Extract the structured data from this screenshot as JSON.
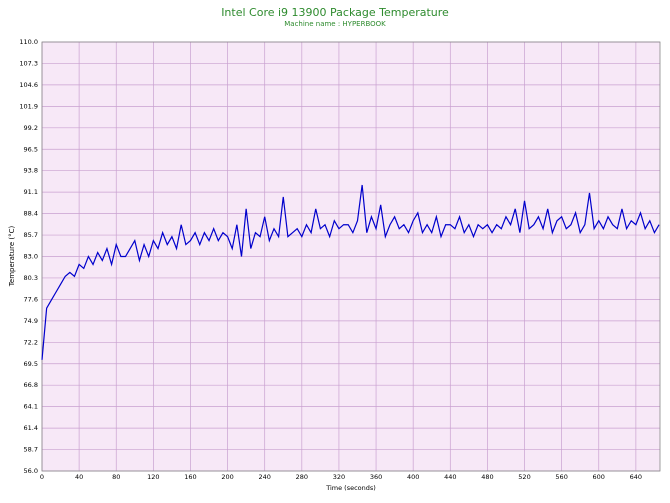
{
  "chart_data": {
    "type": "line",
    "title": "Intel Core i9 13900 Package Temperature",
    "subtitle": "Machine name : HYPERBOOK",
    "x_label": "Time (seconds)",
    "y_label": "Temperature (°C)",
    "color": "#0000cc",
    "grid": true,
    "xlim": [
      0,
      666
    ],
    "ylim": [
      56,
      110
    ],
    "xticks": [
      0,
      40,
      80,
      120,
      160,
      200,
      240,
      280,
      320,
      360,
      400,
      440,
      480,
      520,
      560,
      600,
      640
    ],
    "yticks": [
      {
        "value": 56,
        "label": "56.0"
      },
      58.7,
      61.4,
      64.1,
      66.8,
      69.5,
      72.2,
      74.9,
      77.6,
      80.3,
      {
        "value": 83,
        "label": "83.0"
      },
      85.7,
      88.4,
      91.1,
      93.8,
      96.5,
      99.2,
      101.9,
      104.6,
      107.3,
      {
        "value": 110,
        "label": "110.0"
      }
    ],
    "x": [
      0,
      5,
      10,
      15,
      20,
      25,
      30,
      35,
      40,
      45,
      50,
      55,
      60,
      65,
      70,
      75,
      80,
      85,
      90,
      95,
      100,
      105,
      110,
      115,
      120,
      125,
      130,
      135,
      140,
      145,
      150,
      155,
      160,
      165,
      170,
      175,
      180,
      185,
      190,
      195,
      200,
      205,
      210,
      215,
      220,
      225,
      230,
      235,
      240,
      245,
      250,
      255,
      260,
      265,
      270,
      275,
      280,
      285,
      290,
      295,
      300,
      305,
      310,
      315,
      320,
      325,
      330,
      335,
      340,
      345,
      350,
      355,
      360,
      365,
      370,
      375,
      380,
      385,
      390,
      395,
      400,
      405,
      410,
      415,
      420,
      425,
      430,
      435,
      440,
      445,
      450,
      455,
      460,
      465,
      470,
      475,
      480,
      485,
      490,
      495,
      500,
      505,
      510,
      515,
      520,
      525,
      530,
      535,
      540,
      545,
      550,
      555,
      560,
      565,
      570,
      575,
      580,
      585,
      590,
      595,
      600,
      605,
      610,
      615,
      620,
      625,
      630,
      635,
      640,
      645,
      650,
      655,
      660,
      665
    ],
    "values": [
      70,
      76.5,
      77.5,
      78.5,
      79.5,
      80.5,
      81,
      80.5,
      82,
      81.5,
      83,
      82,
      83.5,
      82.5,
      84,
      82,
      84.5,
      83,
      83,
      84,
      85,
      82.5,
      84.5,
      83,
      85,
      84,
      86,
      84.5,
      85.5,
      84,
      87,
      84.5,
      85,
      86,
      84.5,
      86,
      85,
      86.5,
      85,
      86,
      85.5,
      84,
      87,
      83,
      89,
      84,
      86,
      85.5,
      88,
      85,
      86.5,
      85.5,
      90.5,
      85.5,
      86,
      86.5,
      85.5,
      87,
      86,
      89,
      86.5,
      87,
      85.5,
      87.5,
      86.5,
      87,
      87,
      86,
      87.5,
      92,
      86,
      88,
      86.5,
      89.5,
      85.5,
      87,
      88,
      86.5,
      87,
      86,
      87.5,
      88.5,
      86,
      87,
      86,
      88,
      85.5,
      87,
      87,
      86.5,
      88,
      86,
      87,
      85.5,
      87,
      86.5,
      87,
      86,
      87,
      86.5,
      88,
      87,
      89,
      86,
      90,
      86.5,
      87,
      88,
      86.5,
      89,
      86,
      87.5,
      88,
      86.5,
      87,
      88.5,
      86,
      87,
      91,
      86.5,
      87.5,
      86.5,
      88,
      87,
      86.5,
      89,
      86.5,
      87.5,
      87,
      88.5,
      86.5,
      87.5,
      86,
      87
    ]
  }
}
